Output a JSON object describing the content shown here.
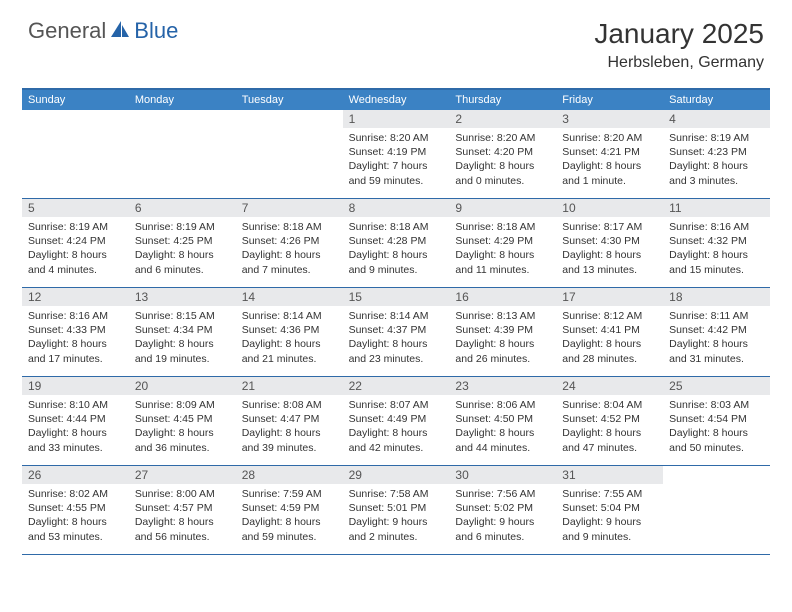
{
  "logo": {
    "general": "General",
    "blue": "Blue"
  },
  "title": "January 2025",
  "location": "Herbsleben, Germany",
  "colors": {
    "header_bg": "#3b82c4",
    "border": "#2f6aa8",
    "daynum_bg": "#e8e9eb",
    "logo_blue": "#2563a8"
  },
  "weekdays": [
    "Sunday",
    "Monday",
    "Tuesday",
    "Wednesday",
    "Thursday",
    "Friday",
    "Saturday"
  ],
  "weeks": [
    [
      null,
      null,
      null,
      {
        "n": "1",
        "sr": "Sunrise: 8:20 AM",
        "ss": "Sunset: 4:19 PM",
        "d1": "Daylight: 7 hours",
        "d2": "and 59 minutes."
      },
      {
        "n": "2",
        "sr": "Sunrise: 8:20 AM",
        "ss": "Sunset: 4:20 PM",
        "d1": "Daylight: 8 hours",
        "d2": "and 0 minutes."
      },
      {
        "n": "3",
        "sr": "Sunrise: 8:20 AM",
        "ss": "Sunset: 4:21 PM",
        "d1": "Daylight: 8 hours",
        "d2": "and 1 minute."
      },
      {
        "n": "4",
        "sr": "Sunrise: 8:19 AM",
        "ss": "Sunset: 4:23 PM",
        "d1": "Daylight: 8 hours",
        "d2": "and 3 minutes."
      }
    ],
    [
      {
        "n": "5",
        "sr": "Sunrise: 8:19 AM",
        "ss": "Sunset: 4:24 PM",
        "d1": "Daylight: 8 hours",
        "d2": "and 4 minutes."
      },
      {
        "n": "6",
        "sr": "Sunrise: 8:19 AM",
        "ss": "Sunset: 4:25 PM",
        "d1": "Daylight: 8 hours",
        "d2": "and 6 minutes."
      },
      {
        "n": "7",
        "sr": "Sunrise: 8:18 AM",
        "ss": "Sunset: 4:26 PM",
        "d1": "Daylight: 8 hours",
        "d2": "and 7 minutes."
      },
      {
        "n": "8",
        "sr": "Sunrise: 8:18 AM",
        "ss": "Sunset: 4:28 PM",
        "d1": "Daylight: 8 hours",
        "d2": "and 9 minutes."
      },
      {
        "n": "9",
        "sr": "Sunrise: 8:18 AM",
        "ss": "Sunset: 4:29 PM",
        "d1": "Daylight: 8 hours",
        "d2": "and 11 minutes."
      },
      {
        "n": "10",
        "sr": "Sunrise: 8:17 AM",
        "ss": "Sunset: 4:30 PM",
        "d1": "Daylight: 8 hours",
        "d2": "and 13 minutes."
      },
      {
        "n": "11",
        "sr": "Sunrise: 8:16 AM",
        "ss": "Sunset: 4:32 PM",
        "d1": "Daylight: 8 hours",
        "d2": "and 15 minutes."
      }
    ],
    [
      {
        "n": "12",
        "sr": "Sunrise: 8:16 AM",
        "ss": "Sunset: 4:33 PM",
        "d1": "Daylight: 8 hours",
        "d2": "and 17 minutes."
      },
      {
        "n": "13",
        "sr": "Sunrise: 8:15 AM",
        "ss": "Sunset: 4:34 PM",
        "d1": "Daylight: 8 hours",
        "d2": "and 19 minutes."
      },
      {
        "n": "14",
        "sr": "Sunrise: 8:14 AM",
        "ss": "Sunset: 4:36 PM",
        "d1": "Daylight: 8 hours",
        "d2": "and 21 minutes."
      },
      {
        "n": "15",
        "sr": "Sunrise: 8:14 AM",
        "ss": "Sunset: 4:37 PM",
        "d1": "Daylight: 8 hours",
        "d2": "and 23 minutes."
      },
      {
        "n": "16",
        "sr": "Sunrise: 8:13 AM",
        "ss": "Sunset: 4:39 PM",
        "d1": "Daylight: 8 hours",
        "d2": "and 26 minutes."
      },
      {
        "n": "17",
        "sr": "Sunrise: 8:12 AM",
        "ss": "Sunset: 4:41 PM",
        "d1": "Daylight: 8 hours",
        "d2": "and 28 minutes."
      },
      {
        "n": "18",
        "sr": "Sunrise: 8:11 AM",
        "ss": "Sunset: 4:42 PM",
        "d1": "Daylight: 8 hours",
        "d2": "and 31 minutes."
      }
    ],
    [
      {
        "n": "19",
        "sr": "Sunrise: 8:10 AM",
        "ss": "Sunset: 4:44 PM",
        "d1": "Daylight: 8 hours",
        "d2": "and 33 minutes."
      },
      {
        "n": "20",
        "sr": "Sunrise: 8:09 AM",
        "ss": "Sunset: 4:45 PM",
        "d1": "Daylight: 8 hours",
        "d2": "and 36 minutes."
      },
      {
        "n": "21",
        "sr": "Sunrise: 8:08 AM",
        "ss": "Sunset: 4:47 PM",
        "d1": "Daylight: 8 hours",
        "d2": "and 39 minutes."
      },
      {
        "n": "22",
        "sr": "Sunrise: 8:07 AM",
        "ss": "Sunset: 4:49 PM",
        "d1": "Daylight: 8 hours",
        "d2": "and 42 minutes."
      },
      {
        "n": "23",
        "sr": "Sunrise: 8:06 AM",
        "ss": "Sunset: 4:50 PM",
        "d1": "Daylight: 8 hours",
        "d2": "and 44 minutes."
      },
      {
        "n": "24",
        "sr": "Sunrise: 8:04 AM",
        "ss": "Sunset: 4:52 PM",
        "d1": "Daylight: 8 hours",
        "d2": "and 47 minutes."
      },
      {
        "n": "25",
        "sr": "Sunrise: 8:03 AM",
        "ss": "Sunset: 4:54 PM",
        "d1": "Daylight: 8 hours",
        "d2": "and 50 minutes."
      }
    ],
    [
      {
        "n": "26",
        "sr": "Sunrise: 8:02 AM",
        "ss": "Sunset: 4:55 PM",
        "d1": "Daylight: 8 hours",
        "d2": "and 53 minutes."
      },
      {
        "n": "27",
        "sr": "Sunrise: 8:00 AM",
        "ss": "Sunset: 4:57 PM",
        "d1": "Daylight: 8 hours",
        "d2": "and 56 minutes."
      },
      {
        "n": "28",
        "sr": "Sunrise: 7:59 AM",
        "ss": "Sunset: 4:59 PM",
        "d1": "Daylight: 8 hours",
        "d2": "and 59 minutes."
      },
      {
        "n": "29",
        "sr": "Sunrise: 7:58 AM",
        "ss": "Sunset: 5:01 PM",
        "d1": "Daylight: 9 hours",
        "d2": "and 2 minutes."
      },
      {
        "n": "30",
        "sr": "Sunrise: 7:56 AM",
        "ss": "Sunset: 5:02 PM",
        "d1": "Daylight: 9 hours",
        "d2": "and 6 minutes."
      },
      {
        "n": "31",
        "sr": "Sunrise: 7:55 AM",
        "ss": "Sunset: 5:04 PM",
        "d1": "Daylight: 9 hours",
        "d2": "and 9 minutes."
      },
      null
    ]
  ]
}
